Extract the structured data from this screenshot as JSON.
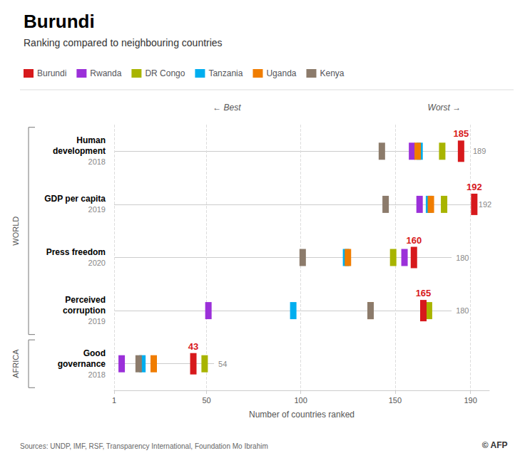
{
  "chart_data": {
    "type": "scatter",
    "orientation": "horizontal",
    "marker": "rect",
    "grid": true,
    "legend": "top",
    "title": "Burundi",
    "subtitle": "Ranking compared to neighbouring countries",
    "xlabel": "Number of countries ranked",
    "source": "Sources: UNDP, IMF, RSF, Transparency International, Foundation Mo Ibrahim",
    "credit": "© AFP",
    "annotations": [
      "← Best",
      "Worst →"
    ],
    "categories": [
      "Human\ndevelopment",
      "GDP per capita",
      "Press freedom",
      "Perceived\ncorruption",
      "Good\ngovernance"
    ],
    "category_years": [
      "2018",
      "2019",
      "2020",
      "2019",
      "2018"
    ],
    "category_group": [
      "WORLD",
      "WORLD",
      "WORLD",
      "WORLD",
      "AFRICA"
    ],
    "totals": [
      189,
      192,
      180,
      180,
      54
    ],
    "series": [
      {
        "name": "Burundi",
        "color": "#d7191c",
        "values": [
          185,
          192,
          160,
          165,
          43
        ],
        "data_labels": true
      },
      {
        "name": "Rwanda",
        "color": "#9b30d9",
        "values": [
          159,
          163,
          155,
          51,
          5
        ]
      },
      {
        "name": "DR Congo",
        "color": "#a8b400",
        "values": [
          175,
          176,
          149,
          168,
          49
        ]
      },
      {
        "name": "Tanzania",
        "color": "#00aeef",
        "values": [
          163,
          168,
          124,
          96,
          16
        ]
      },
      {
        "name": "Uganda",
        "color": "#f07d00",
        "values": [
          162,
          169,
          125,
          137,
          22
        ]
      },
      {
        "name": "Kenya",
        "color": "#8c7b6b",
        "values": [
          143,
          145,
          101,
          137,
          14
        ]
      }
    ],
    "xlim": [
      1,
      200
    ],
    "xticks": [
      1,
      50,
      100,
      150,
      190
    ]
  }
}
